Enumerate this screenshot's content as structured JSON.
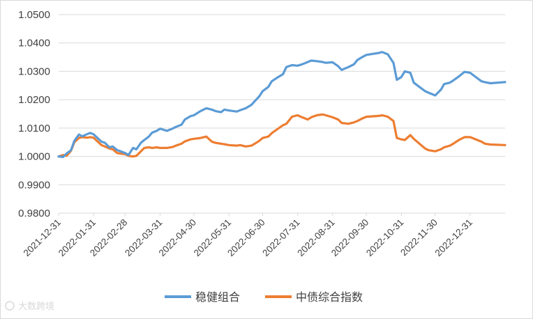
{
  "chart_data": {
    "type": "line",
    "title": "",
    "xlabel": "",
    "ylabel": "",
    "ylim": [
      0.98,
      1.05
    ],
    "yticks": [
      "0.9800",
      "0.9900",
      "1.0000",
      "1.0100",
      "1.0200",
      "1.0300",
      "1.0400",
      "1.0500"
    ],
    "ytick_values": [
      0.98,
      0.99,
      1.0,
      1.01,
      1.02,
      1.03,
      1.04,
      1.05
    ],
    "xticks": [
      "2021-12-31",
      "2022-01-31",
      "2022-02-28",
      "2022-03-31",
      "2022-04-30",
      "2022-05-31",
      "2022-06-30",
      "2022-07-31",
      "2022-08-31",
      "2022-09-30",
      "2022-10-31",
      "2022-11-30",
      "2022-12-31"
    ],
    "x_range": [
      "2021-12-31",
      "2023-01-31"
    ],
    "grid": "horizontal",
    "legend_position": "bottom",
    "series": [
      {
        "name": "稳健组合",
        "color": "#5B9BD5",
        "x": [
          "2021-12-31",
          "2022-01-04",
          "2022-01-07",
          "2022-01-11",
          "2022-01-14",
          "2022-01-18",
          "2022-01-21",
          "2022-01-25",
          "2022-01-28",
          "2022-01-31",
          "2022-02-07",
          "2022-02-10",
          "2022-02-14",
          "2022-02-17",
          "2022-02-21",
          "2022-02-24",
          "2022-02-28",
          "2022-03-03",
          "2022-03-07",
          "2022-03-10",
          "2022-03-14",
          "2022-03-17",
          "2022-03-21",
          "2022-03-24",
          "2022-03-28",
          "2022-03-31",
          "2022-04-06",
          "2022-04-11",
          "2022-04-14",
          "2022-04-19",
          "2022-04-22",
          "2022-04-27",
          "2022-04-30",
          "2022-05-06",
          "2022-05-11",
          "2022-05-16",
          "2022-05-19",
          "2022-05-24",
          "2022-05-27",
          "2022-05-31",
          "2022-06-07",
          "2022-06-10",
          "2022-06-15",
          "2022-06-20",
          "2022-06-23",
          "2022-06-27",
          "2022-06-30",
          "2022-07-05",
          "2022-07-08",
          "2022-07-13",
          "2022-07-18",
          "2022-07-21",
          "2022-07-26",
          "2022-07-31",
          "2022-08-04",
          "2022-08-09",
          "2022-08-12",
          "2022-08-17",
          "2022-08-22",
          "2022-08-25",
          "2022-08-31",
          "2022-09-05",
          "2022-09-08",
          "2022-09-14",
          "2022-09-19",
          "2022-09-22",
          "2022-09-27",
          "2022-09-30",
          "2022-10-11",
          "2022-10-14",
          "2022-10-19",
          "2022-10-24",
          "2022-10-27",
          "2022-10-31",
          "2022-11-03",
          "2022-11-08",
          "2022-11-11",
          "2022-11-16",
          "2022-11-21",
          "2022-11-24",
          "2022-11-30",
          "2022-12-05",
          "2022-12-08",
          "2022-12-13",
          "2022-12-16",
          "2022-12-21",
          "2022-12-26",
          "2022-12-31",
          "2023-01-05",
          "2023-01-10",
          "2023-01-13",
          "2023-01-18",
          "2023-01-31"
        ],
        "values": [
          1.0,
          0.9998,
          1.001,
          1.0022,
          1.0055,
          1.0077,
          1.0071,
          1.0078,
          1.0083,
          1.0078,
          1.0052,
          1.0048,
          1.0032,
          1.0035,
          1.0022,
          1.0018,
          1.0012,
          1.0005,
          1.003,
          1.0025,
          1.0048,
          1.0058,
          1.007,
          1.0084,
          1.009,
          1.0098,
          1.009,
          1.0098,
          1.0104,
          1.0112,
          1.013,
          1.0142,
          1.0145,
          1.016,
          1.017,
          1.0165,
          1.016,
          1.0156,
          1.0165,
          1.0162,
          1.0158,
          1.0163,
          1.017,
          1.0182,
          1.0195,
          1.0212,
          1.023,
          1.0245,
          1.0265,
          1.0278,
          1.029,
          1.0315,
          1.0322,
          1.032,
          1.0325,
          1.0333,
          1.0338,
          1.0336,
          1.0333,
          1.033,
          1.0332,
          1.0318,
          1.0305,
          1.0315,
          1.0325,
          1.034,
          1.0352,
          1.0358,
          1.0365,
          1.0368,
          1.036,
          1.033,
          1.027,
          1.028,
          1.03,
          1.0295,
          1.026,
          1.0245,
          1.023,
          1.0225,
          1.0215,
          1.0235,
          1.0255,
          1.026,
          1.0268,
          1.0282,
          1.0298,
          1.0295,
          1.028,
          1.0265,
          1.0262,
          1.0258,
          1.0262
        ]
      },
      {
        "name": "中债综合指数",
        "color": "#ED7D31",
        "x": [
          "2021-12-31",
          "2022-01-04",
          "2022-01-07",
          "2022-01-11",
          "2022-01-14",
          "2022-01-18",
          "2022-01-21",
          "2022-01-25",
          "2022-01-28",
          "2022-01-31",
          "2022-02-07",
          "2022-02-10",
          "2022-02-14",
          "2022-02-17",
          "2022-02-21",
          "2022-02-24",
          "2022-02-28",
          "2022-03-03",
          "2022-03-07",
          "2022-03-10",
          "2022-03-14",
          "2022-03-17",
          "2022-03-21",
          "2022-03-24",
          "2022-03-28",
          "2022-03-31",
          "2022-04-06",
          "2022-04-11",
          "2022-04-14",
          "2022-04-19",
          "2022-04-22",
          "2022-04-27",
          "2022-04-30",
          "2022-05-06",
          "2022-05-11",
          "2022-05-16",
          "2022-05-19",
          "2022-05-24",
          "2022-05-27",
          "2022-05-31",
          "2022-06-07",
          "2022-06-10",
          "2022-06-15",
          "2022-06-20",
          "2022-06-23",
          "2022-06-27",
          "2022-06-30",
          "2022-07-05",
          "2022-07-08",
          "2022-07-13",
          "2022-07-18",
          "2022-07-21",
          "2022-07-26",
          "2022-07-31",
          "2022-08-04",
          "2022-08-09",
          "2022-08-12",
          "2022-08-17",
          "2022-08-22",
          "2022-08-25",
          "2022-08-31",
          "2022-09-05",
          "2022-09-08",
          "2022-09-14",
          "2022-09-19",
          "2022-09-22",
          "2022-09-27",
          "2022-09-30",
          "2022-10-11",
          "2022-10-14",
          "2022-10-19",
          "2022-10-24",
          "2022-10-27",
          "2022-10-31",
          "2022-11-03",
          "2022-11-08",
          "2022-11-11",
          "2022-11-16",
          "2022-11-21",
          "2022-11-24",
          "2022-11-30",
          "2022-12-05",
          "2022-12-08",
          "2022-12-13",
          "2022-12-16",
          "2022-12-21",
          "2022-12-26",
          "2022-12-31",
          "2023-01-05",
          "2023-01-10",
          "2023-01-13",
          "2023-01-18",
          "2023-01-31"
        ],
        "values": [
          1.0,
          1.0005,
          1.0002,
          1.002,
          1.005,
          1.0065,
          1.0068,
          1.0066,
          1.0068,
          1.0066,
          1.004,
          1.0035,
          1.0028,
          1.0025,
          1.0012,
          1.001,
          1.0008,
          1.0002,
          1.0,
          1.0002,
          1.0018,
          1.003,
          1.0032,
          1.003,
          1.0032,
          1.003,
          1.003,
          1.0033,
          1.0038,
          1.0045,
          1.0053,
          1.006,
          1.0062,
          1.0065,
          1.007,
          1.0052,
          1.0048,
          1.0045,
          1.0043,
          1.004,
          1.0038,
          1.004,
          1.0035,
          1.0038,
          1.0045,
          1.0055,
          1.0065,
          1.007,
          1.0082,
          1.0096,
          1.011,
          1.0115,
          1.014,
          1.0145,
          1.0138,
          1.013,
          1.0138,
          1.0145,
          1.0148,
          1.0145,
          1.0138,
          1.013,
          1.0118,
          1.0115,
          1.012,
          1.0125,
          1.0135,
          1.014,
          1.0143,
          1.0145,
          1.014,
          1.0125,
          1.0065,
          1.006,
          1.0058,
          1.0075,
          1.0062,
          1.0045,
          1.0028,
          1.0022,
          1.0018,
          1.0025,
          1.0032,
          1.0038,
          1.0045,
          1.0058,
          1.0068,
          1.0068,
          1.006,
          1.0052,
          1.0045,
          1.0042,
          1.004
        ]
      }
    ]
  },
  "watermark": {
    "text": "大数跨境"
  }
}
